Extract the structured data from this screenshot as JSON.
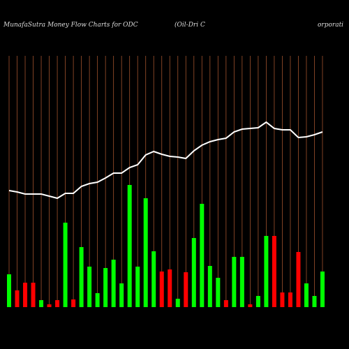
{
  "chart_data": {
    "type": "bar-line",
    "title": "MunafaSutra  Money Flow  Charts for ODC",
    "subtitle": "(Oil-Dri  C",
    "subtitle_tail": "orporati",
    "bars": {
      "values": [
        47,
        24,
        35,
        35,
        10,
        4,
        10,
        121,
        11,
        86,
        58,
        20,
        56,
        68,
        34,
        175,
        58,
        156,
        80,
        51,
        54,
        12,
        50,
        99,
        148,
        59,
        42,
        10,
        72,
        72,
        4,
        16,
        102,
        102,
        21,
        21,
        79,
        34,
        16,
        51
      ],
      "colors": [
        "#00ff00",
        "#ff0000",
        "#ff0000",
        "#ff0000",
        "#00ff00",
        "#ff0000",
        "#ff0000",
        "#00ff00",
        "#ff0000",
        "#00ff00",
        "#00ff00",
        "#00ff00",
        "#00ff00",
        "#00ff00",
        "#00ff00",
        "#00ff00",
        "#00ff00",
        "#00ff00",
        "#00ff00",
        "#ff0000",
        "#ff0000",
        "#00ff00",
        "#ff0000",
        "#00ff00",
        "#00ff00",
        "#00ff00",
        "#00ff00",
        "#ff0000",
        "#00ff00",
        "#00ff00",
        "#ff0000",
        "#00ff00",
        "#00ff00",
        "#ff0000",
        "#ff0000",
        "#ff0000",
        "#ff0000",
        "#00ff00",
        "#00ff00",
        "#00ff00"
      ]
    },
    "line": {
      "color": "#ffffff",
      "values": [
        167,
        165,
        162,
        162,
        162,
        159,
        156,
        163,
        163,
        173,
        177,
        179,
        185,
        192,
        192,
        200,
        204,
        218,
        223,
        219,
        216,
        215,
        213,
        224,
        232,
        237,
        240,
        242,
        251,
        255,
        256,
        257,
        265,
        256,
        254,
        254,
        243,
        244,
        247,
        251
      ]
    },
    "gridline_color": "#a0522d"
  }
}
